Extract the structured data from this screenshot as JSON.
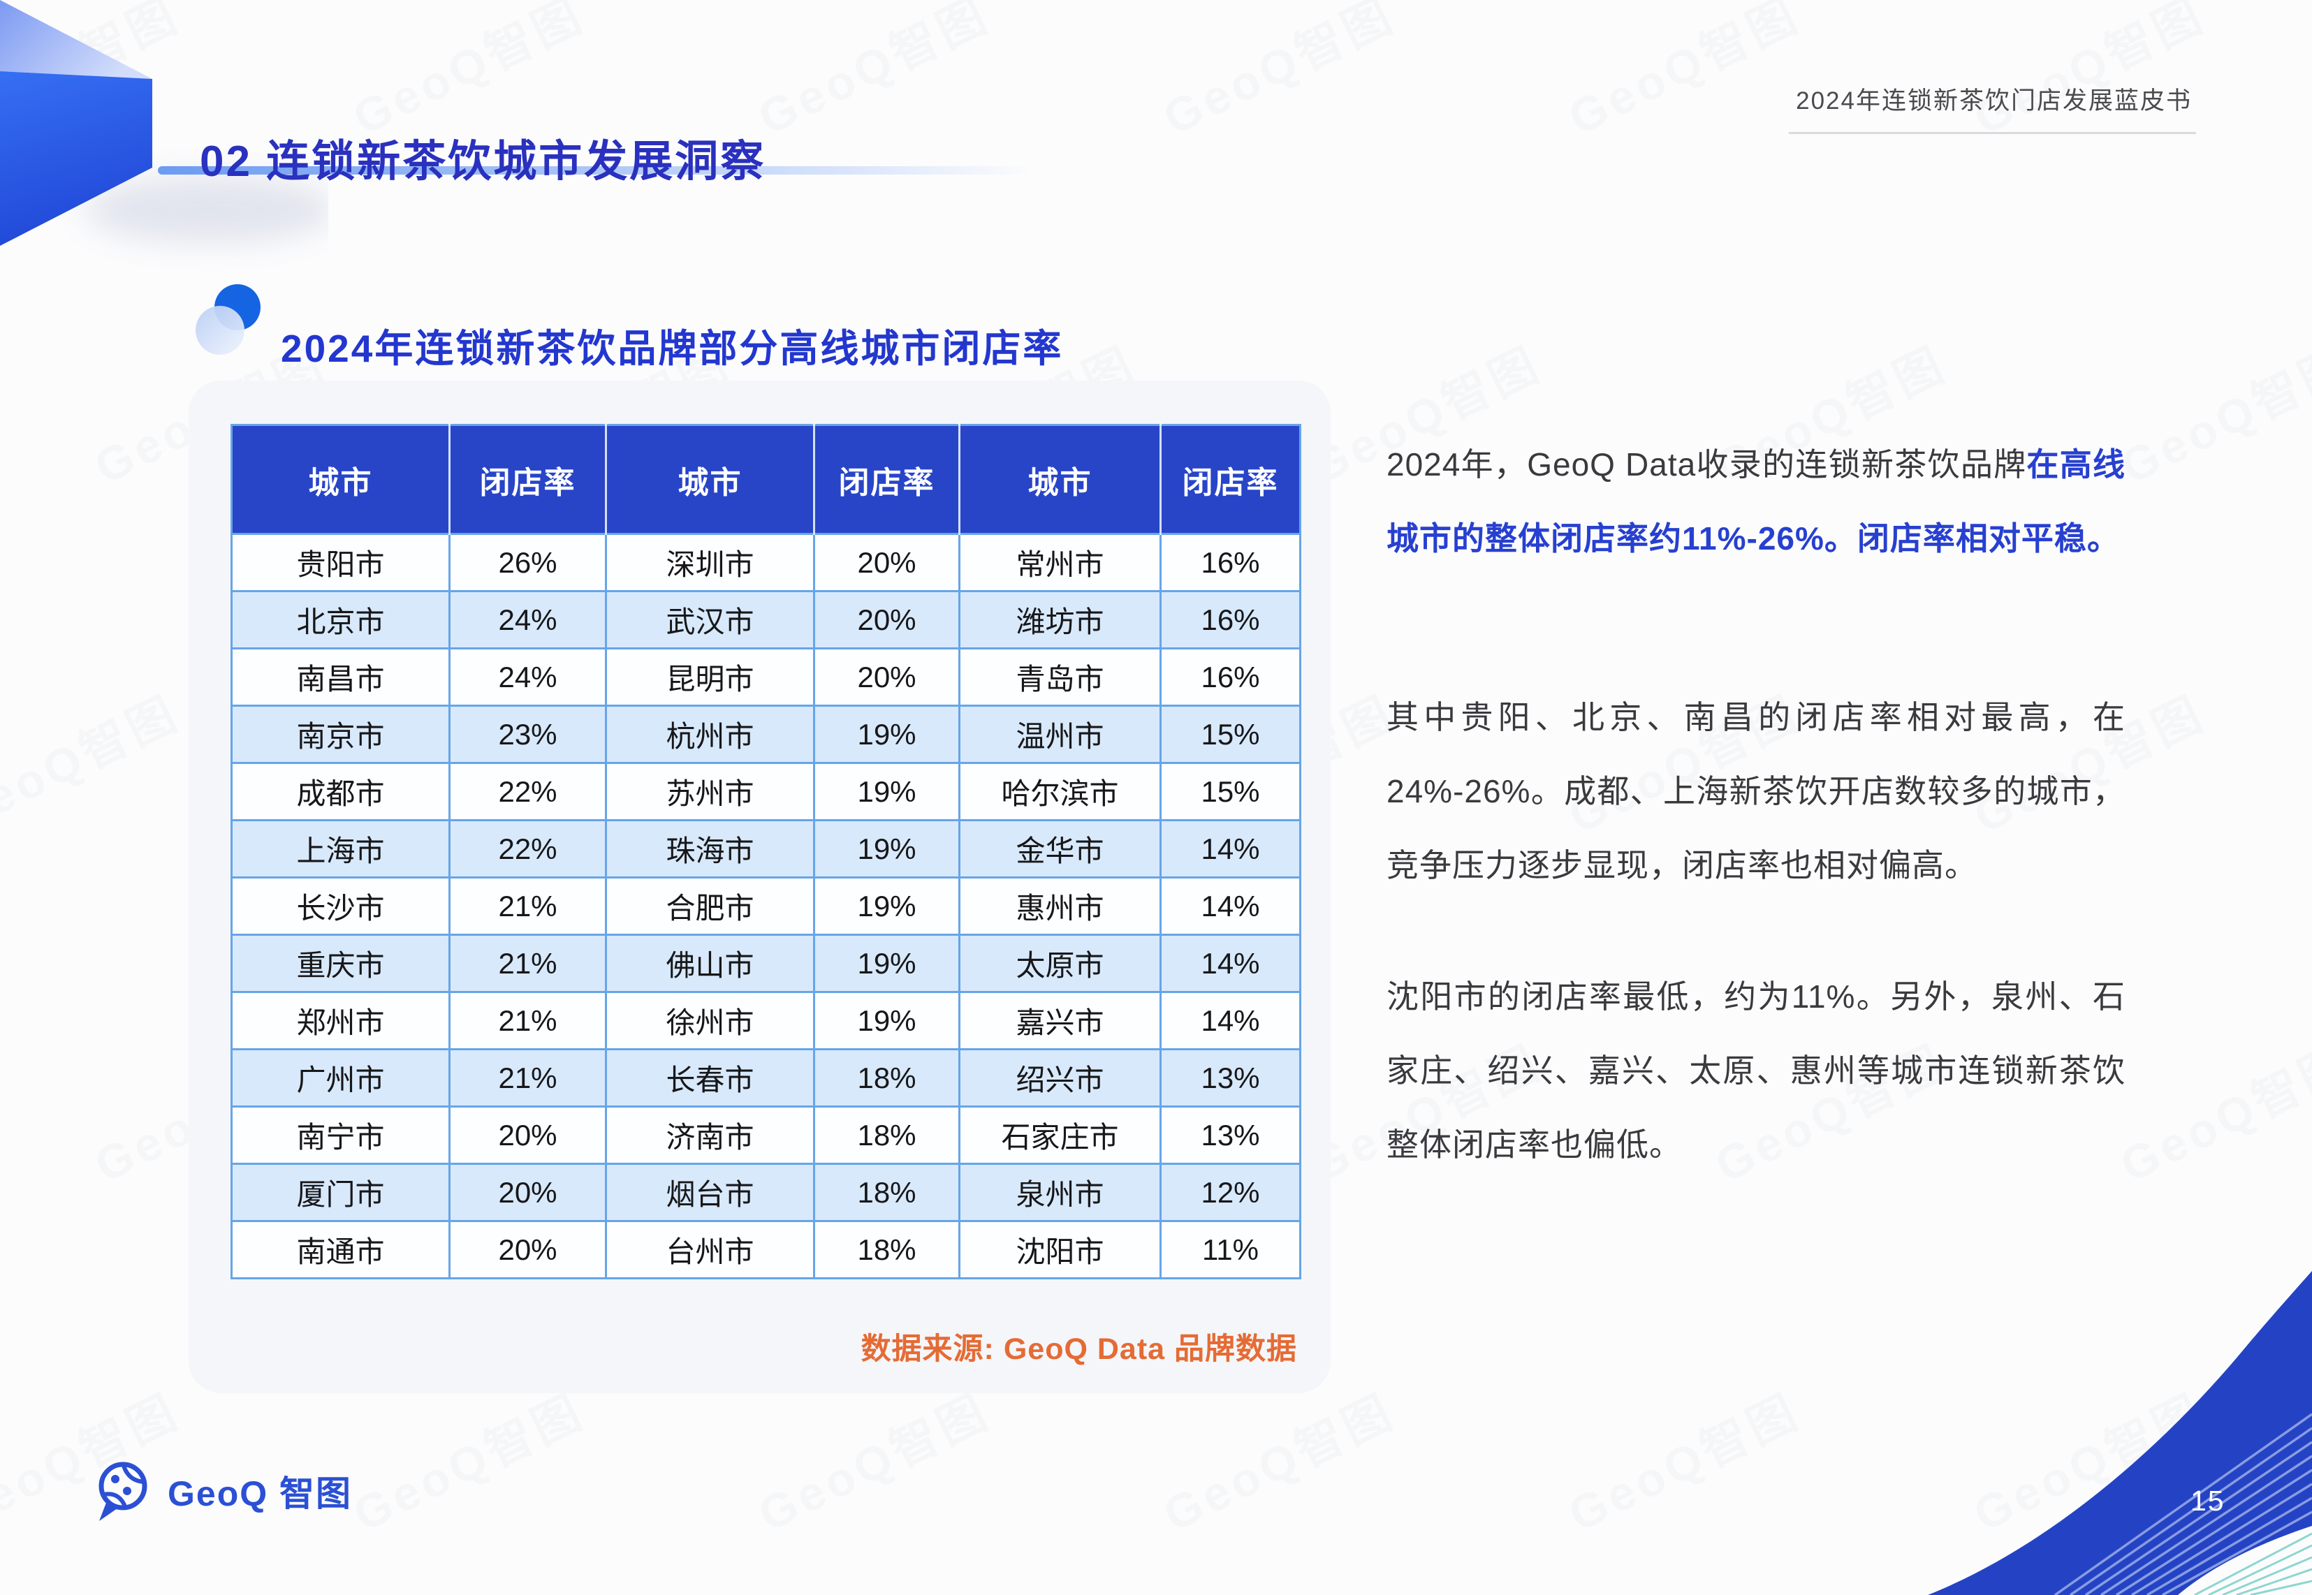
{
  "header": {
    "page_title": "02 连锁新茶饮城市发展洞察",
    "report_title": "2024年连锁新茶饮门店发展蓝皮书"
  },
  "section_title": "2024年连锁新茶饮品牌部分高线城市闭店率",
  "table": {
    "headers": [
      "城市",
      "闭店率",
      "城市",
      "闭店率",
      "城市",
      "闭店率"
    ],
    "rows": [
      [
        "贵阳市",
        "26%",
        "深圳市",
        "20%",
        "常州市",
        "16%"
      ],
      [
        "北京市",
        "24%",
        "武汉市",
        "20%",
        "潍坊市",
        "16%"
      ],
      [
        "南昌市",
        "24%",
        "昆明市",
        "20%",
        "青岛市",
        "16%"
      ],
      [
        "南京市",
        "23%",
        "杭州市",
        "19%",
        "温州市",
        "15%"
      ],
      [
        "成都市",
        "22%",
        "苏州市",
        "19%",
        "哈尔滨市",
        "15%"
      ],
      [
        "上海市",
        "22%",
        "珠海市",
        "19%",
        "金华市",
        "14%"
      ],
      [
        "长沙市",
        "21%",
        "合肥市",
        "19%",
        "惠州市",
        "14%"
      ],
      [
        "重庆市",
        "21%",
        "佛山市",
        "19%",
        "太原市",
        "14%"
      ],
      [
        "郑州市",
        "21%",
        "徐州市",
        "19%",
        "嘉兴市",
        "14%"
      ],
      [
        "广州市",
        "21%",
        "长春市",
        "18%",
        "绍兴市",
        "13%"
      ],
      [
        "南宁市",
        "20%",
        "济南市",
        "18%",
        "石家庄市",
        "13%"
      ],
      [
        "厦门市",
        "20%",
        "烟台市",
        "18%",
        "泉州市",
        "12%"
      ],
      [
        "南通市",
        "20%",
        "台州市",
        "18%",
        "沈阳市",
        "11%"
      ]
    ]
  },
  "source_note": "数据来源: GeoQ Data 品牌数据",
  "analysis": {
    "p1_normal": "2024年，GeoQ Data收录的连锁新茶饮品牌",
    "p1_highlight": "在高线城市的整体闭店率约11%-26%。闭店率相对平稳。",
    "p2": "其中贵阳、北京、南昌的闭店率相对最高，在24%-26%。成都、上海新茶饮开店数较多的城市，竞争压力逐步显现，闭店率也相对偏高。",
    "p3": "沈阳市的闭店率最低，约为11%。另外，泉州、石家庄、绍兴、嘉兴、太原、惠州等城市连锁新茶饮整体闭店率也偏低。"
  },
  "footer": {
    "brand_logo_text": "GeoQ 智图",
    "page_number": "15"
  },
  "brand": {
    "watermark_text": "GeoQ智图"
  },
  "colors": {
    "table_header_bg": "#2845C8",
    "row_alt_bg": "#D8E9FB",
    "grid_line": "#66A5E8",
    "title_blue": "#2A31BE",
    "section_blue": "#2337CF",
    "highlight_blue": "#2740D0",
    "source_orange": "#E56B35",
    "logo_blue": "#2B50D4",
    "swoosh_blue": "#2443C4"
  }
}
